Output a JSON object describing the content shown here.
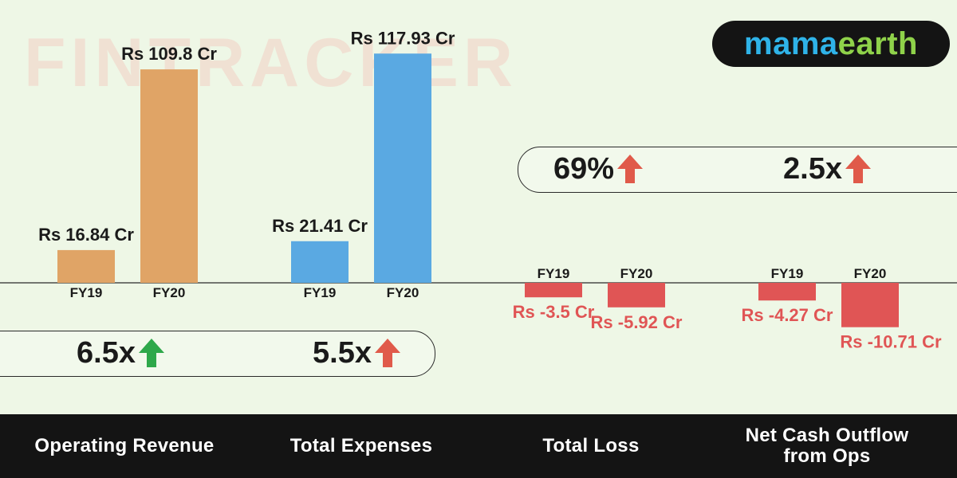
{
  "watermark": "FINTRACKER",
  "brand": {
    "part1": "mama",
    "part2": "earth"
  },
  "colors": {
    "revenue": "#e0a466",
    "expenses": "#5aa9e2",
    "negative": "#e05555",
    "growth_up_green": "#2ea84a",
    "growth_up_red": "#e05a4a",
    "footer_bg": "#141414",
    "background": "#eef7e6"
  },
  "chart_data": [
    {
      "type": "bar",
      "title": "Operating Revenue",
      "categories": [
        "FY19",
        "FY20"
      ],
      "values": [
        16.84,
        109.8
      ],
      "value_labels": [
        "Rs 16.84 Cr",
        "Rs 109.8 Cr"
      ],
      "growth": "6.5x",
      "growth_arrow": "up-green"
    },
    {
      "type": "bar",
      "title": "Total Expenses",
      "categories": [
        "FY19",
        "FY20"
      ],
      "values": [
        21.41,
        117.93
      ],
      "value_labels": [
        "Rs 21.41 Cr",
        "Rs 117.93 Cr"
      ],
      "growth": "5.5x",
      "growth_arrow": "up-red"
    },
    {
      "type": "bar",
      "title": "Total Loss",
      "categories": [
        "FY19",
        "FY20"
      ],
      "values": [
        -3.5,
        -5.92
      ],
      "value_labels": [
        "Rs -3.5 Cr",
        "Rs -5.92 Cr"
      ],
      "growth": "69%",
      "growth_arrow": "up-red"
    },
    {
      "type": "bar",
      "title": "Net Cash Outflow from Ops",
      "title_lines": [
        "Net Cash Outflow",
        "from Ops"
      ],
      "categories": [
        "FY19",
        "FY20"
      ],
      "values": [
        -4.27,
        -10.71
      ],
      "value_labels": [
        "Rs -4.27 Cr",
        "Rs -10.71 Cr"
      ],
      "growth": "2.5x",
      "growth_arrow": "up-red"
    }
  ]
}
